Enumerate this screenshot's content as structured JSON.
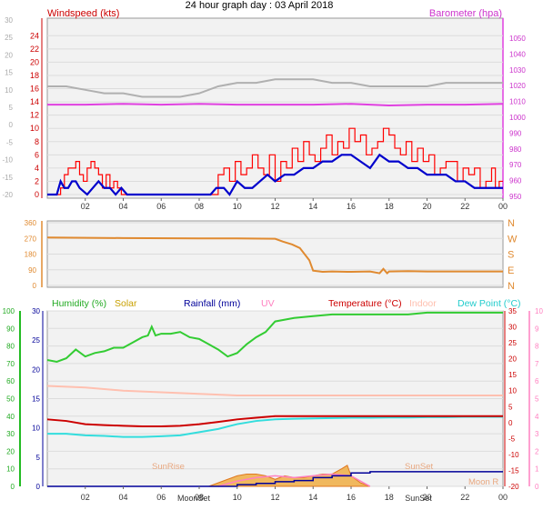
{
  "title": "24 hour graph day : 03 April 2018",
  "colors": {
    "wind": "#ff0000",
    "gust": "#0000cc",
    "baro": "#e040e0",
    "temp": "#cc0000",
    "indoor": "#ffc0b0",
    "dew": "#33dddd",
    "hum": "#33cc33",
    "rain": "#000099",
    "dir": "#e08a30",
    "solar": "#f0a020",
    "uv": "#ff80c0",
    "grey": "#b0b0b0"
  },
  "x_ticks": [
    "02",
    "04",
    "06",
    "08",
    "10",
    "12",
    "14",
    "16",
    "18",
    "20",
    "22",
    "00"
  ],
  "panel1": {
    "left_label": "Windspeed (kts)",
    "right_label": "Barometer (hpa)",
    "left_ticks_red": [
      "24",
      "22",
      "20",
      "18",
      "16",
      "14",
      "12",
      "10",
      "8",
      "6",
      "4",
      "2",
      "0"
    ],
    "left_ticks_grey": [
      "30",
      "25",
      "20",
      "15",
      "10",
      "5",
      "0",
      "-5",
      "-10",
      "-15",
      "-20"
    ],
    "right_ticks": [
      "1050",
      "1040",
      "1030",
      "1020",
      "1010",
      "1000",
      "990",
      "980",
      "970",
      "960",
      "950"
    ]
  },
  "panel2": {
    "left_ticks": [
      "360",
      "270",
      "180",
      "90",
      "0"
    ],
    "right_ticks": [
      "N",
      "W",
      "S",
      "E",
      "N"
    ]
  },
  "panel3": {
    "labels": {
      "humidity": "Humidity (%)",
      "solar": "Solar",
      "rainfall": "Rainfall (mm)",
      "uv": "UV",
      "temperature": "Temperature (°C)",
      "indoor": "Indoor",
      "dew": "Dew Point (°C)"
    },
    "hum_ticks": [
      "100",
      "90",
      "80",
      "70",
      "60",
      "50",
      "40",
      "30",
      "20",
      "10",
      "0"
    ],
    "rain_ticks": [
      "30",
      "25",
      "20",
      "15",
      "10",
      "5",
      "0"
    ],
    "temp_ticks": [
      "35",
      "30",
      "25",
      "20",
      "15",
      "10",
      "5",
      "0",
      "-5",
      "-10",
      "-15",
      "-20"
    ],
    "uv_ticks": [
      "10",
      "9",
      "8",
      "7",
      "6",
      "5",
      "4",
      "3",
      "2",
      "1",
      "0"
    ],
    "annotations": {
      "sunrise": "SunRise",
      "sunset": "SunSet",
      "moonset": "MoonSet",
      "moonrise": "Moon R",
      "moonset_tick": "MoonSet",
      "sunset_tick": "SunSet"
    }
  },
  "chart_data": [
    {
      "type": "line",
      "title": "24 hour graph day : 03 April 2018",
      "xlabel": "",
      "x_range_hours": [
        0,
        24
      ],
      "series": [
        {
          "name": "Windspeed (kts)",
          "y_axis": "kts",
          "ylim": [
            0,
            25
          ],
          "x": [
            0,
            0.5,
            0.7,
            0.9,
            1.1,
            1.3,
            1.5,
            1.7,
            1.9,
            2.1,
            2.3,
            2.5,
            2.7,
            2.9,
            3.1,
            3.3,
            3.5,
            3.7,
            3.9,
            4.1,
            4.3,
            8.6,
            8.8,
            9,
            9.3,
            9.6,
            9.9,
            10.2,
            10.5,
            10.8,
            11.1,
            11.4,
            11.7,
            12,
            12.3,
            12.6,
            12.9,
            13.2,
            13.5,
            13.8,
            14.1,
            14.4,
            14.7,
            15,
            15.3,
            15.6,
            15.9,
            16.2,
            16.5,
            16.8,
            17.1,
            17.4,
            17.7,
            18,
            18.3,
            18.6,
            18.9,
            19.2,
            19.5,
            19.8,
            20.1,
            20.4,
            20.7,
            21,
            21.3,
            21.6,
            21.9,
            22.2,
            22.5,
            22.8,
            23.1,
            23.4,
            23.6,
            23.8,
            24
          ],
          "y": [
            0,
            0,
            1,
            3,
            4,
            4,
            5,
            3,
            2,
            4,
            5,
            4,
            3,
            1,
            3,
            1,
            2,
            1,
            0,
            0,
            0,
            0,
            0,
            3,
            4,
            2,
            5,
            3,
            4,
            6,
            4,
            3,
            6,
            2,
            5,
            4,
            7,
            5,
            8,
            6,
            5,
            7,
            9,
            6,
            8,
            7,
            10,
            8,
            9,
            6,
            7,
            8,
            10,
            9,
            7,
            6,
            8,
            5,
            7,
            5,
            6,
            3,
            4,
            5,
            5,
            2,
            4,
            3,
            4,
            1,
            2,
            4,
            1,
            2,
            2
          ]
        },
        {
          "name": "Gust",
          "y_axis": "kts",
          "ylim": [
            0,
            25
          ],
          "x": [
            0,
            0.5,
            0.7,
            0.9,
            1.1,
            1.3,
            1.5,
            1.7,
            2.1,
            2.4,
            2.7,
            3,
            3.3,
            3.6,
            3.9,
            4.2,
            8.6,
            8.9,
            9.3,
            9.6,
            10,
            10.4,
            10.8,
            11.2,
            11.6,
            12,
            12.5,
            13,
            13.5,
            14,
            14.5,
            15,
            15.5,
            16,
            16.5,
            17,
            17.5,
            18,
            18.5,
            19,
            19.5,
            20,
            20.5,
            21,
            21.5,
            22,
            22.5,
            23,
            23.5,
            24
          ],
          "y": [
            0,
            0,
            2,
            1,
            1,
            2,
            2,
            1,
            0,
            1,
            2,
            1,
            1,
            0,
            1,
            0,
            0,
            1,
            1,
            0,
            2,
            1,
            1,
            2,
            3,
            2,
            3,
            3,
            4,
            4,
            5,
            5,
            6,
            6,
            5,
            4,
            6,
            5,
            5,
            4,
            4,
            3,
            3,
            3,
            2,
            2,
            1,
            1,
            1,
            1
          ]
        },
        {
          "name": "Barometer (hpa)",
          "y_axis": "hpa",
          "ylim": [
            950,
            1050
          ],
          "x": [
            0,
            2,
            4,
            6,
            8,
            10,
            12,
            14,
            16,
            18,
            20,
            22,
            24
          ],
          "y": [
            1008,
            1008,
            1008.5,
            1008,
            1008.5,
            1008,
            1008,
            1008,
            1008.5,
            1007.5,
            1008,
            1008,
            1008.5
          ]
        },
        {
          "name": "Grey trace",
          "y_axis": "grey",
          "ylim": [
            -20,
            30
          ],
          "x": [
            0,
            1,
            2,
            3,
            4,
            5,
            6,
            7,
            8,
            9,
            10,
            11,
            12,
            13,
            14,
            15,
            16,
            17,
            18,
            19,
            20,
            21,
            22,
            23,
            24
          ],
          "y": [
            11,
            11,
            10,
            9,
            9,
            8,
            8,
            8,
            9,
            11,
            12,
            12,
            13,
            13,
            13,
            12,
            12,
            11,
            11,
            11,
            11,
            12,
            12,
            12,
            12
          ]
        }
      ]
    },
    {
      "type": "line",
      "title": "",
      "xlabel": "",
      "x_range_hours": [
        0,
        24
      ],
      "ylim": [
        0,
        360
      ],
      "series": [
        {
          "name": "Wind direction",
          "y_axis": "deg",
          "x": [
            0,
            4,
            8,
            10,
            12,
            12.4,
            12.9,
            13.3,
            13.8,
            14,
            14.5,
            15,
            16,
            17,
            17.5,
            17.7,
            17.9,
            18,
            19,
            20,
            21,
            22,
            23,
            24
          ],
          "y": [
            275,
            272,
            270,
            270,
            268,
            252,
            235,
            215,
            145,
            85,
            78,
            80,
            78,
            80,
            70,
            95,
            70,
            80,
            82,
            80,
            80,
            80,
            80,
            80
          ]
        }
      ]
    },
    {
      "type": "line",
      "title": "",
      "xlabel": "",
      "x_range_hours": [
        0,
        24
      ],
      "series": [
        {
          "name": "Humidity (%)",
          "y_axis": "hum",
          "ylim": [
            0,
            100
          ],
          "x": [
            0,
            0.5,
            1,
            1.5,
            2,
            2.5,
            3,
            3.5,
            4,
            4.5,
            5,
            5.3,
            5.5,
            5.7,
            6,
            6.5,
            7,
            7.5,
            8,
            8.5,
            9,
            9.5,
            10,
            10.5,
            11,
            11.5,
            12,
            13,
            14,
            15,
            16,
            17,
            18,
            19,
            20,
            21,
            22,
            23,
            24
          ],
          "y": [
            72,
            71,
            73,
            78,
            74,
            76,
            77,
            79,
            79,
            82,
            85,
            86,
            91,
            86,
            87,
            87,
            88,
            85,
            84,
            81,
            78,
            74,
            76,
            81,
            85,
            88,
            94,
            96,
            97,
            98,
            98,
            98,
            98,
            98,
            99,
            99,
            99,
            99,
            99
          ]
        },
        {
          "name": "Temperature (°C)",
          "y_axis": "temp",
          "ylim": [
            -20,
            35
          ],
          "x": [
            0,
            1,
            2,
            3,
            4,
            5,
            6,
            7,
            8,
            9,
            10,
            11,
            12,
            13,
            14,
            15,
            16,
            17,
            18,
            19,
            20,
            21,
            22,
            23,
            24
          ],
          "y": [
            1,
            0.5,
            -0.5,
            -0.8,
            -1,
            -1.2,
            -1.2,
            -1,
            -0.5,
            0.2,
            1,
            1.5,
            2,
            2,
            2,
            2,
            2,
            2,
            2,
            2,
            2,
            2,
            2,
            2,
            2
          ]
        },
        {
          "name": "Indoor",
          "y_axis": "temp",
          "ylim": [
            -20,
            35
          ],
          "x": [
            0,
            2,
            4,
            6,
            8,
            10,
            12,
            14,
            16,
            18,
            20,
            22,
            24
          ],
          "y": [
            11.5,
            11,
            10,
            9.5,
            9,
            8.5,
            8.5,
            8.5,
            8.5,
            8.5,
            8.5,
            8.5,
            8.5
          ]
        },
        {
          "name": "Dew Point (°C)",
          "y_axis": "temp",
          "ylim": [
            -20,
            35
          ],
          "x": [
            0,
            1,
            2,
            3,
            4,
            5,
            6,
            7,
            8,
            9,
            10,
            11,
            12,
            13,
            14,
            15,
            16,
            17,
            18,
            19,
            20,
            21,
            22,
            23,
            24
          ],
          "y": [
            -3.5,
            -3.5,
            -4,
            -4.2,
            -4.5,
            -4.5,
            -4.3,
            -4,
            -3,
            -2,
            -0.5,
            0.5,
            1,
            1.2,
            1.3,
            1.4,
            1.5,
            1.5,
            1.6,
            1.6,
            1.7,
            1.7,
            1.8,
            1.8,
            1.8
          ]
        },
        {
          "name": "Rainfall (mm)",
          "y_axis": "rain",
          "ylim": [
            0,
            30
          ],
          "x": [
            0,
            8,
            9,
            10,
            11,
            12,
            13,
            14,
            15,
            16,
            17,
            18,
            19,
            20,
            21,
            22,
            23,
            24
          ],
          "y": [
            0,
            0,
            0,
            0.3,
            0.5,
            0.8,
            1,
            1.5,
            1.8,
            2.3,
            2.5,
            2.5,
            2.5,
            2.5,
            2.5,
            2.5,
            2.5,
            2.5
          ]
        },
        {
          "name": "Solar",
          "y_axis": "hum",
          "ylim": [
            0,
            100
          ],
          "x": [
            8.5,
            9,
            9.5,
            10,
            10.5,
            11,
            11.5,
            12,
            12.5,
            13,
            13.5,
            14,
            14.5,
            15,
            15.5,
            15.8,
            16,
            16.5,
            17
          ],
          "y": [
            0,
            2,
            4,
            6,
            7,
            7,
            6,
            4,
            6,
            5,
            5,
            6,
            7,
            7,
            10,
            12,
            6,
            2,
            0
          ]
        },
        {
          "name": "UV",
          "y_axis": "uv",
          "ylim": [
            0,
            10
          ],
          "x": [
            9,
            10,
            11,
            12,
            13,
            14,
            15,
            16,
            17
          ],
          "y": [
            0,
            0.3,
            0.5,
            0.6,
            0.5,
            0.6,
            0.7,
            0.6,
            0
          ]
        }
      ]
    }
  ]
}
